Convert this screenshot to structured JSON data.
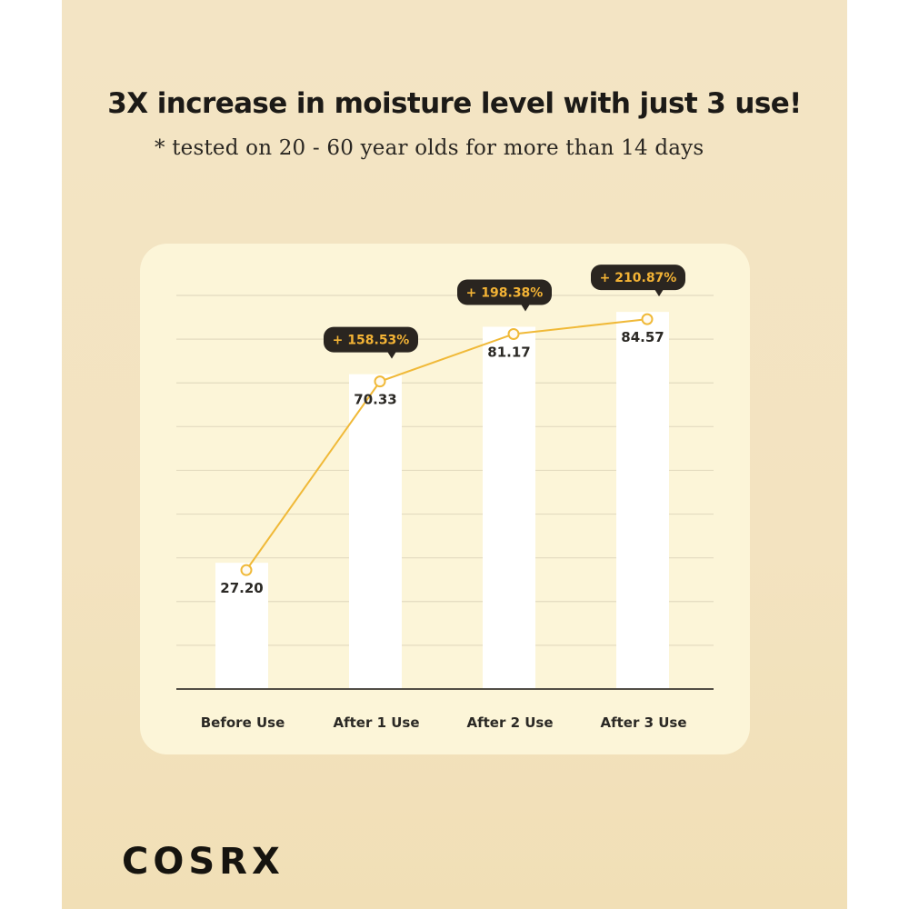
{
  "headline": "3X increase in moisture level with just 3 use!",
  "subline": "* tested on 20 - 60 year olds for more than 14 days",
  "brand": "COSRX",
  "colors": {
    "background": "#f3e3c0",
    "card": "#fcf5d8",
    "bar": "#ffffff",
    "line": "#f0b938",
    "badge_bg": "#2a2520",
    "badge_text": "#f3b335",
    "text": "#1c1a17"
  },
  "chart_data": {
    "type": "bar",
    "categories": [
      "Before Use",
      "After 1 Use",
      "After 2 Use",
      "After 3 Use"
    ],
    "values": [
      27.2,
      70.33,
      81.17,
      84.57
    ],
    "value_labels": [
      "27.20",
      "70.33",
      "81.17",
      "84.57"
    ],
    "increase_labels": [
      "",
      "+ 158.53%",
      "+ 198.38%",
      "+ 210.87%"
    ],
    "overlay_line": true,
    "ylim": [
      0,
      90
    ],
    "grid": true,
    "axis_values_shown": false
  }
}
